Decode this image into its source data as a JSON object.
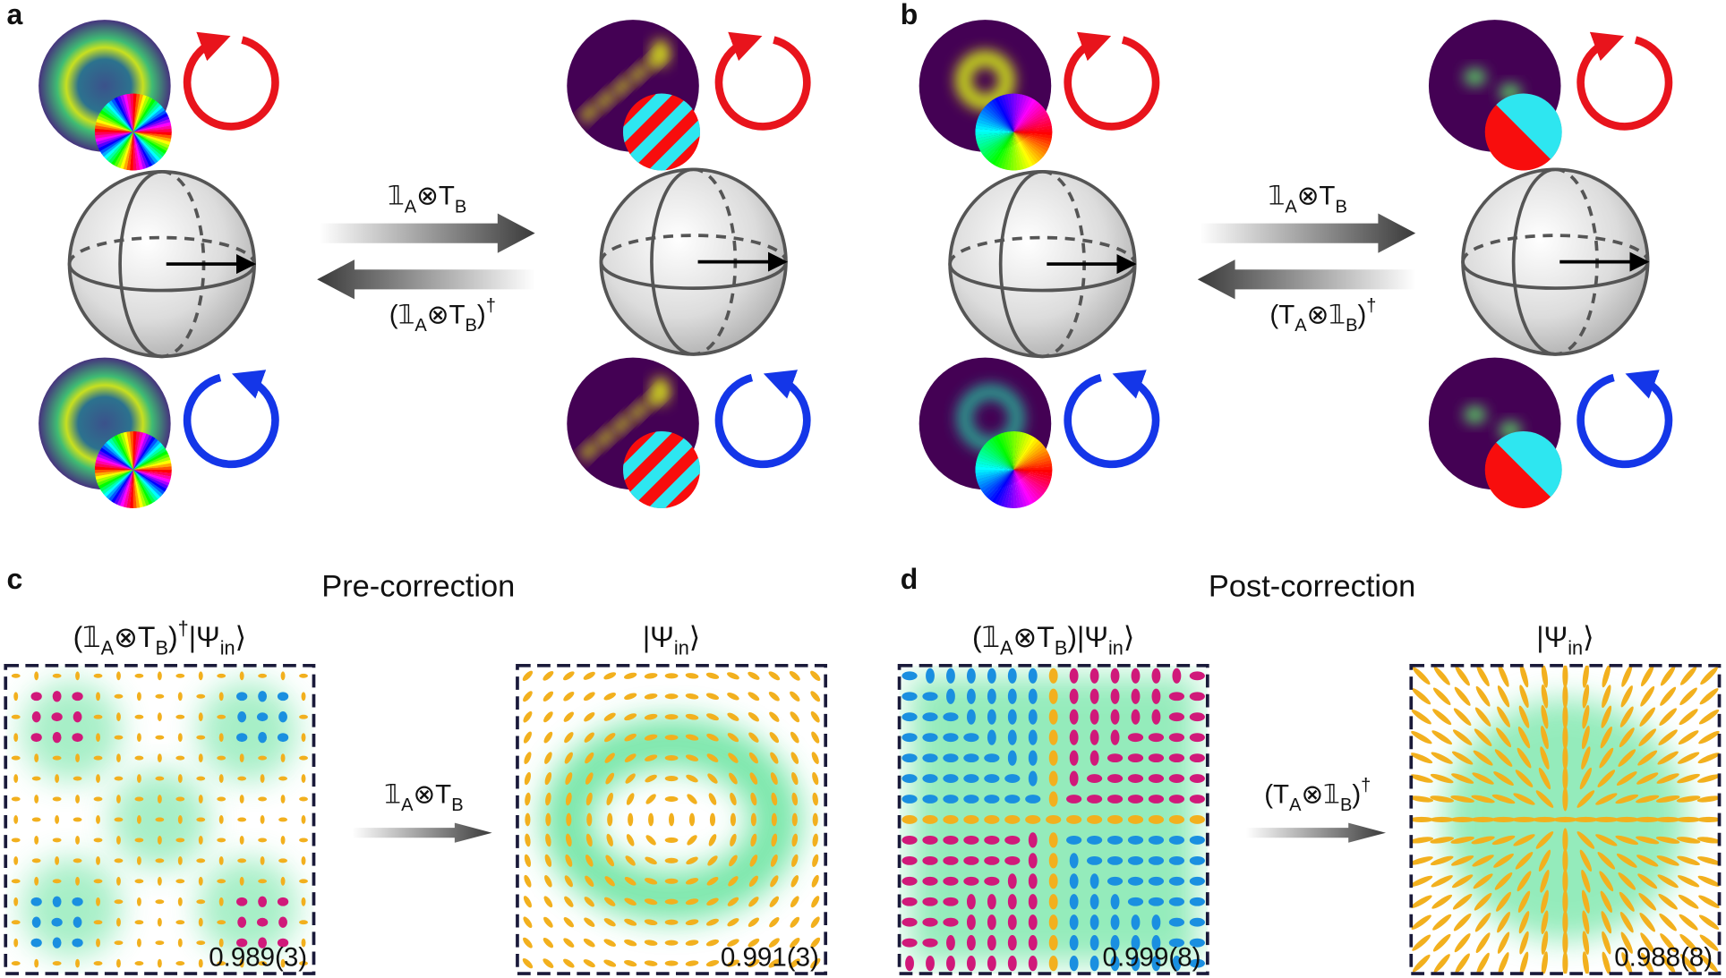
{
  "panels": [
    {
      "label": "a",
      "forward": [
        {
          "text": "𝟙"
        },
        {
          "text": "A",
          "style": "sub"
        },
        {
          "text": "⊗T"
        },
        {
          "text": "B",
          "style": "sub"
        }
      ],
      "backward": [
        {
          "text": "(𝟙"
        },
        {
          "text": "A",
          "style": "sub"
        },
        {
          "text": "⊗T"
        },
        {
          "text": "B",
          "style": "sub"
        },
        {
          "text": ")"
        },
        {
          "text": "†",
          "style": "sup"
        }
      ]
    },
    {
      "label": "b",
      "forward": [
        {
          "text": "𝟙"
        },
        {
          "text": "A",
          "style": "sub"
        },
        {
          "text": "⊗T"
        },
        {
          "text": "B",
          "style": "sub"
        }
      ],
      "backward": [
        {
          "text": "(T"
        },
        {
          "text": "A",
          "style": "sub"
        },
        {
          "text": "⊗𝟙"
        },
        {
          "text": "B",
          "style": "sub"
        },
        {
          "text": ")"
        },
        {
          "text": "†",
          "style": "sup"
        }
      ]
    },
    {
      "label": "c",
      "title": "Pre-correction",
      "input": [
        {
          "text": "(𝟙"
        },
        {
          "text": "A",
          "style": "sub"
        },
        {
          "text": "⊗T"
        },
        {
          "text": "B",
          "style": "sub"
        },
        {
          "text": ")"
        },
        {
          "text": "†",
          "style": "sup"
        },
        {
          "text": "|Ψ"
        },
        {
          "text": "in",
          "style": "sub"
        },
        {
          "text": "⟩"
        }
      ],
      "operation": [
        {
          "text": "𝟙"
        },
        {
          "text": "A",
          "style": "sub"
        },
        {
          "text": "⊗T"
        },
        {
          "text": "B",
          "style": "sub"
        }
      ],
      "output": [
        {
          "text": "|Ψ"
        },
        {
          "text": "in",
          "style": "sub"
        },
        {
          "text": "⟩"
        }
      ],
      "fidelities": [
        "0.989(3)",
        "0.991(3)"
      ]
    },
    {
      "label": "d",
      "title": "Post-correction",
      "input": [
        {
          "text": "(𝟙"
        },
        {
          "text": "A",
          "style": "sub"
        },
        {
          "text": "⊗T"
        },
        {
          "text": "B",
          "style": "sub"
        },
        {
          "text": ")|Ψ"
        },
        {
          "text": "in",
          "style": "sub"
        },
        {
          "text": "⟩"
        }
      ],
      "operation": [
        {
          "text": "(T"
        },
        {
          "text": "A",
          "style": "sub"
        },
        {
          "text": "⊗𝟙"
        },
        {
          "text": "B",
          "style": "sub"
        },
        {
          "text": ")"
        },
        {
          "text": "†",
          "style": "sup"
        }
      ],
      "output": [
        {
          "text": "|Ψ"
        },
        {
          "text": "in",
          "style": "sub"
        },
        {
          "text": "⟩"
        }
      ],
      "fidelities": [
        "0.999(8)",
        "0.988(8)"
      ]
    }
  ]
}
